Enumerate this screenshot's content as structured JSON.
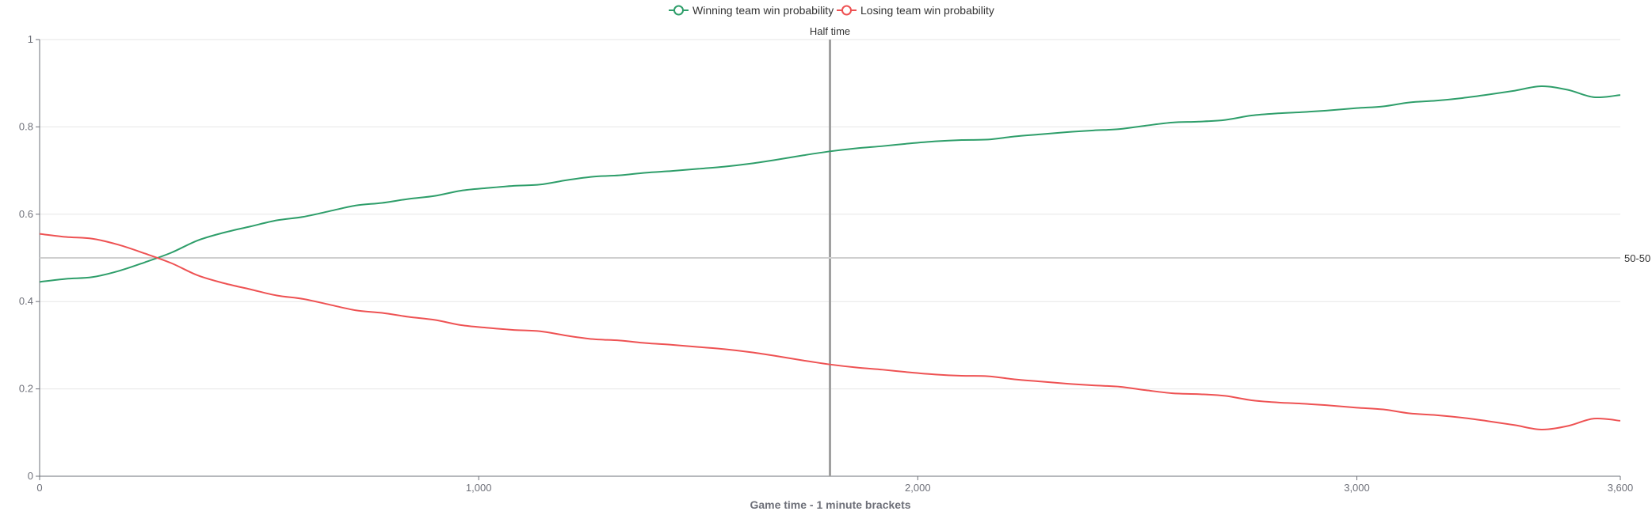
{
  "chart_data": {
    "type": "line",
    "xlabel": "Game time - 1 minute brackets",
    "ylabel": "",
    "xlim": [
      0,
      3600
    ],
    "ylim": [
      0,
      1
    ],
    "x_ticks": [
      0,
      1000,
      2000,
      3000,
      3600
    ],
    "x_tick_labels": [
      "0",
      "1,000",
      "2,000",
      "3,000",
      "3,600"
    ],
    "y_ticks": [
      0,
      0.2,
      0.4,
      0.6,
      0.8,
      1
    ],
    "y_tick_labels": [
      "0",
      "0.2",
      "0.4",
      "0.6",
      "0.8",
      "1"
    ],
    "grid": true,
    "legend_position": "top-center",
    "x": [
      0,
      60,
      120,
      180,
      240,
      300,
      360,
      420,
      480,
      540,
      600,
      660,
      720,
      780,
      840,
      900,
      960,
      1020,
      1080,
      1140,
      1200,
      1260,
      1320,
      1380,
      1440,
      1500,
      1560,
      1620,
      1680,
      1740,
      1800,
      1860,
      1920,
      1980,
      2040,
      2100,
      2160,
      2220,
      2280,
      2340,
      2400,
      2460,
      2520,
      2580,
      2640,
      2700,
      2760,
      2820,
      2880,
      2940,
      3000,
      3060,
      3120,
      3180,
      3240,
      3300,
      3360,
      3420,
      3480,
      3540,
      3600
    ],
    "series": [
      {
        "name": "Winning team win probability",
        "color": "#2e9e6a",
        "values": [
          0.445,
          0.452,
          0.456,
          0.47,
          0.49,
          0.512,
          0.54,
          0.558,
          0.572,
          0.586,
          0.594,
          0.607,
          0.62,
          0.626,
          0.635,
          0.642,
          0.654,
          0.66,
          0.665,
          0.668,
          0.678,
          0.686,
          0.689,
          0.695,
          0.699,
          0.704,
          0.709,
          0.716,
          0.725,
          0.735,
          0.744,
          0.751,
          0.756,
          0.762,
          0.767,
          0.77,
          0.771,
          0.778,
          0.783,
          0.788,
          0.792,
          0.795,
          0.803,
          0.81,
          0.812,
          0.816,
          0.826,
          0.831,
          0.834,
          0.838,
          0.843,
          0.847,
          0.856,
          0.86,
          0.866,
          0.874,
          0.883,
          0.893,
          0.885,
          0.868,
          0.873
        ]
      },
      {
        "name": "Losing team win probability",
        "color": "#ee5253",
        "values": [
          0.555,
          0.548,
          0.544,
          0.53,
          0.51,
          0.488,
          0.46,
          0.442,
          0.428,
          0.414,
          0.406,
          0.393,
          0.38,
          0.374,
          0.365,
          0.358,
          0.346,
          0.34,
          0.335,
          0.332,
          0.322,
          0.314,
          0.311,
          0.305,
          0.301,
          0.296,
          0.291,
          0.284,
          0.275,
          0.265,
          0.256,
          0.249,
          0.244,
          0.238,
          0.233,
          0.23,
          0.229,
          0.222,
          0.217,
          0.212,
          0.208,
          0.205,
          0.197,
          0.19,
          0.188,
          0.184,
          0.174,
          0.169,
          0.166,
          0.162,
          0.157,
          0.153,
          0.144,
          0.14,
          0.134,
          0.126,
          0.117,
          0.107,
          0.115,
          0.132,
          0.127
        ]
      }
    ],
    "mark_lines": [
      {
        "axis": "x",
        "value": 1800,
        "label": "Half time",
        "color": "#a0a0a0"
      },
      {
        "axis": "y",
        "value": 0.5,
        "label": "50-50",
        "color": "#cfcfcf"
      }
    ]
  }
}
